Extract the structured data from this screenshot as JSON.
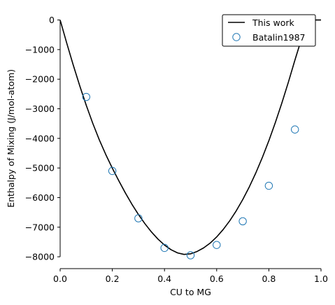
{
  "chart_data": {
    "type": "scatter",
    "xlabel": "CU to MG",
    "ylabel": "Enthalpy of Mixing (J/mol-atom)",
    "xlim": [
      0.0,
      1.0
    ],
    "ylim": [
      -8400,
      250
    ],
    "x_ticks": [
      0.0,
      0.2,
      0.4,
      0.6,
      0.8,
      1.0
    ],
    "x_tick_labels": [
      "0.0",
      "0.2",
      "0.4",
      "0.6",
      "0.8",
      "1.0"
    ],
    "y_ticks": [
      0,
      -1000,
      -2000,
      -3000,
      -4000,
      -5000,
      -6000,
      -7000,
      -8000
    ],
    "y_tick_labels": [
      "0",
      "−1000",
      "−2000",
      "−3000",
      "−4000",
      "−5000",
      "−6000",
      "−7000",
      "−8000"
    ],
    "grid": false,
    "legend_position": "top-right",
    "series": [
      {
        "name": "This work",
        "kind": "line",
        "color": "#000000",
        "x": [
          0.0,
          0.025,
          0.05,
          0.075,
          0.1,
          0.125,
          0.15,
          0.175,
          0.2,
          0.225,
          0.25,
          0.275,
          0.3,
          0.325,
          0.35,
          0.375,
          0.4,
          0.425,
          0.45,
          0.475,
          0.5,
          0.525,
          0.55,
          0.575,
          0.6,
          0.625,
          0.65,
          0.675,
          0.7,
          0.725,
          0.75,
          0.775,
          0.8,
          0.825,
          0.85,
          0.875,
          0.9,
          0.925,
          0.95,
          0.975,
          1.0
        ],
        "y": [
          0,
          -774,
          -1516,
          -2221,
          -2880,
          -3490,
          -4047,
          -4547,
          -5005,
          -5435,
          -5843,
          -6223,
          -6570,
          -6883,
          -7161,
          -7403,
          -7604,
          -7761,
          -7869,
          -7920,
          -7900,
          -7820,
          -7700,
          -7538,
          -7330,
          -7078,
          -6785,
          -6448,
          -6066,
          -5640,
          -5168,
          -4648,
          -4080,
          -3464,
          -2802,
          -2097,
          -1354,
          -643,
          -112,
          0,
          0
        ]
      },
      {
        "name": "Batalin1987",
        "kind": "scatter",
        "color": "#1f77b4",
        "x": [
          0.1,
          0.2,
          0.3,
          0.4,
          0.5,
          0.6,
          0.7,
          0.8,
          0.9
        ],
        "y": [
          -2600,
          -5100,
          -6700,
          -7700,
          -7950,
          -7600,
          -6800,
          -5600,
          -3700
        ]
      }
    ]
  }
}
